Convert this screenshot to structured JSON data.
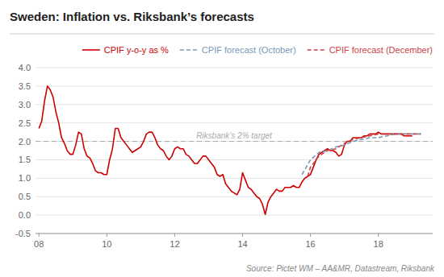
{
  "chart_data": {
    "type": "line",
    "title": "Sweden: Inflation vs. Riksbank’s forecasts",
    "source": "Source: Pictet WM – AA&MR, Datastream, Riksbank",
    "xlim": [
      2007.9,
      2019.6
    ],
    "xticks": [
      {
        "value": 2008,
        "label": "08"
      },
      {
        "value": 2010,
        "label": "10"
      },
      {
        "value": 2012,
        "label": "12"
      },
      {
        "value": 2014,
        "label": "14"
      },
      {
        "value": 2016,
        "label": "16"
      },
      {
        "value": 2018,
        "label": "18"
      }
    ],
    "ylim": [
      -0.5,
      4.0
    ],
    "yticks": [
      -0.5,
      {
        "value": 0.0,
        "label": "0.0"
      },
      0.5,
      {
        "value": 1.0,
        "label": "1.0"
      },
      1.5,
      {
        "value": 2.0,
        "label": "2.0"
      },
      2.5,
      {
        "value": 3.0,
        "label": "3.0"
      },
      3.5,
      {
        "value": 4.0,
        "label": "4.0"
      }
    ],
    "grid": true,
    "legend": "top-right",
    "annotations": [
      {
        "type": "hline",
        "y": 2.0,
        "text": "Riksbank’s 2% target",
        "color": "#aaaaaa"
      }
    ],
    "series": [
      {
        "name": "CPIF y-o-y as %",
        "color": "#cc0000",
        "line_style": "solid",
        "x": [
          2008.0,
          2008.083,
          2008.167,
          2008.25,
          2008.333,
          2008.417,
          2008.5,
          2008.583,
          2008.667,
          2008.75,
          2008.833,
          2008.917,
          2009.0,
          2009.083,
          2009.167,
          2009.25,
          2009.333,
          2009.417,
          2009.5,
          2009.583,
          2009.667,
          2009.75,
          2009.833,
          2009.917,
          2010.0,
          2010.083,
          2010.167,
          2010.25,
          2010.333,
          2010.417,
          2010.5,
          2010.583,
          2010.667,
          2010.75,
          2010.833,
          2010.917,
          2011.0,
          2011.083,
          2011.167,
          2011.25,
          2011.333,
          2011.417,
          2011.5,
          2011.583,
          2011.667,
          2011.75,
          2011.833,
          2011.917,
          2012.0,
          2012.083,
          2012.167,
          2012.25,
          2012.333,
          2012.417,
          2012.5,
          2012.583,
          2012.667,
          2012.75,
          2012.833,
          2012.917,
          2013.0,
          2013.083,
          2013.167,
          2013.25,
          2013.333,
          2013.417,
          2013.5,
          2013.583,
          2013.667,
          2013.75,
          2013.833,
          2013.917,
          2014.0,
          2014.083,
          2014.167,
          2014.25,
          2014.333,
          2014.417,
          2014.5,
          2014.583,
          2014.667,
          2014.75,
          2014.833,
          2014.917,
          2015.0,
          2015.083,
          2015.167,
          2015.25,
          2015.333,
          2015.417,
          2015.5,
          2015.583,
          2015.667,
          2015.75,
          2015.833,
          2015.917,
          2016.0,
          2016.083,
          2016.167,
          2016.25,
          2016.333,
          2016.417,
          2016.5,
          2016.583,
          2016.667,
          2016.75,
          2016.833,
          2016.917,
          2017.0,
          2017.083,
          2017.167,
          2017.25,
          2017.333,
          2017.417,
          2017.5,
          2017.583,
          2017.667,
          2017.75,
          2017.833,
          2017.917,
          2018.0,
          2018.083,
          2018.167,
          2018.25,
          2018.333,
          2018.417,
          2018.5,
          2018.583,
          2018.667,
          2018.75,
          2018.833,
          2018.917,
          2019.0
        ],
        "values": [
          2.35,
          2.55,
          3.1,
          3.5,
          3.4,
          3.2,
          2.8,
          2.5,
          2.1,
          1.95,
          1.75,
          1.65,
          1.65,
          1.9,
          2.25,
          2.2,
          1.8,
          1.6,
          1.55,
          1.4,
          1.2,
          1.15,
          1.15,
          1.1,
          1.1,
          1.5,
          1.8,
          2.35,
          2.35,
          2.1,
          2.0,
          1.9,
          1.8,
          1.7,
          1.75,
          1.8,
          1.85,
          2.0,
          2.2,
          2.25,
          2.25,
          2.1,
          1.9,
          1.8,
          1.75,
          1.6,
          1.5,
          1.6,
          1.8,
          1.85,
          1.8,
          1.8,
          1.65,
          1.6,
          1.5,
          1.4,
          1.4,
          1.5,
          1.6,
          1.6,
          1.5,
          1.4,
          1.3,
          1.1,
          1.05,
          1.1,
          0.85,
          0.75,
          0.65,
          0.6,
          0.55,
          0.7,
          1.15,
          0.95,
          0.75,
          0.7,
          0.6,
          0.5,
          0.45,
          0.3,
          0.02,
          0.35,
          0.5,
          0.6,
          0.7,
          0.65,
          0.65,
          0.75,
          0.75,
          0.75,
          0.8,
          0.75,
          0.75,
          0.9,
          1.0,
          1.05,
          1.1,
          1.3,
          1.5,
          1.65,
          1.7,
          1.75,
          1.8,
          1.75,
          1.75,
          1.7,
          1.6,
          1.65,
          1.9,
          2.0,
          2.0,
          2.1,
          2.1,
          2.1,
          2.1,
          2.15,
          2.15,
          2.2,
          2.2,
          2.2,
          2.25,
          2.2,
          2.2,
          2.2,
          2.2,
          2.2,
          2.2,
          2.2,
          2.2,
          2.15,
          2.15,
          2.15,
          2.15
        ]
      },
      {
        "name": "CPIF forecast (October)",
        "color": "#7799bb",
        "line_style": "dashed",
        "x": [
          2015.75,
          2016.0,
          2016.25,
          2016.5,
          2016.75,
          2017.0,
          2017.25,
          2017.5,
          2017.75,
          2018.0,
          2018.25,
          2018.5,
          2018.75,
          2019.0,
          2019.25
        ],
        "values": [
          1.1,
          1.5,
          1.7,
          1.75,
          1.85,
          1.9,
          2.0,
          2.05,
          2.1,
          2.1,
          2.15,
          2.2,
          2.2,
          2.2,
          2.2
        ]
      },
      {
        "name": "CPIF forecast (December)",
        "color": "#cc4444",
        "line_style": "dashed",
        "x": [
          2015.917,
          2016.0,
          2016.25,
          2016.5,
          2016.75,
          2017.0,
          2017.25,
          2017.5,
          2017.75,
          2018.0,
          2018.25,
          2018.5,
          2018.75,
          2019.0,
          2019.25
        ],
        "values": [
          1.05,
          1.3,
          1.6,
          1.75,
          1.8,
          1.95,
          2.05,
          2.1,
          2.15,
          2.2,
          2.2,
          2.2,
          2.2,
          2.2,
          2.2
        ]
      }
    ]
  }
}
